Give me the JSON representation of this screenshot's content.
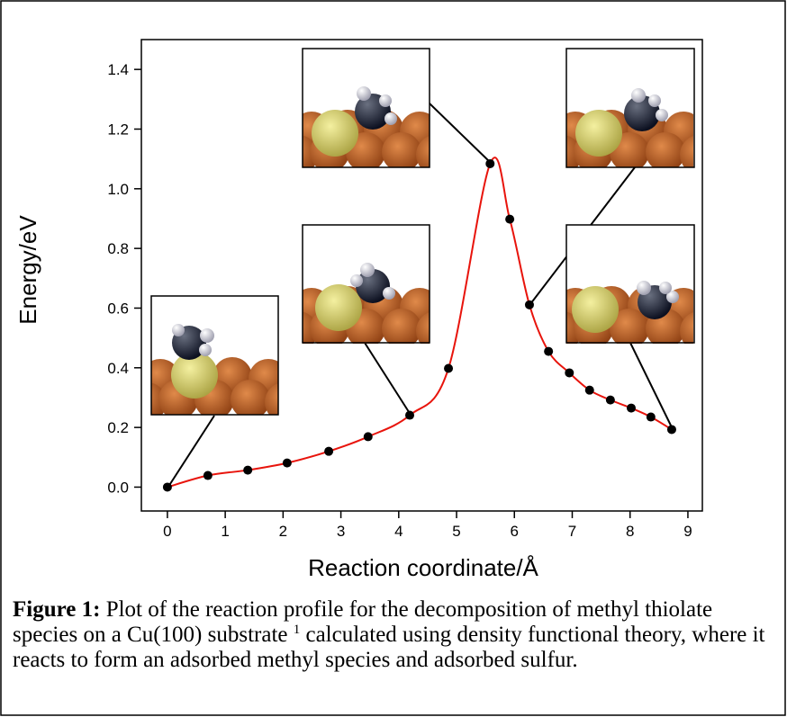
{
  "chart_data": {
    "type": "line",
    "xlabel": "Reaction coordinate/Å",
    "ylabel": "Energy/eV",
    "x": [
      0,
      0.7,
      1.39,
      2.07,
      2.79,
      3.47,
      4.19,
      4.86,
      5.58,
      5.92,
      6.26,
      6.59,
      6.95,
      7.3,
      7.66,
      8.02,
      8.36,
      8.72
    ],
    "series": [
      {
        "color": "#e8140c",
        "marker_color": "#000000",
        "values": [
          0,
          0.039,
          0.057,
          0.081,
          0.12,
          0.169,
          0.241,
          0.398,
          1.084,
          0.898,
          0.611,
          0.455,
          0.383,
          0.325,
          0.292,
          0.265,
          0.235,
          0.193
        ]
      }
    ],
    "xlim": [
      -0.45,
      9.25
    ],
    "ylim": [
      -0.08,
      1.5
    ],
    "xticks": [
      0,
      1,
      2,
      3,
      4,
      5,
      6,
      7,
      8,
      9
    ],
    "yticks": [
      {
        "value": 0,
        "label": "0.0"
      },
      0.2,
      0.4,
      0.6,
      0.8,
      {
        "value": 1,
        "label": "1.0"
      },
      1.2,
      1.4
    ],
    "caption_label": "Figure 1:",
    "caption_text": " Plot of the reaction profile for the decomposition of methyl thiolate species on a Cu(100) substrate ",
    "caption_ref": "1",
    "caption_end": " calculated using density functional theory, where it reacts to form an adsorbed methyl species and adsorbed sulfur."
  }
}
